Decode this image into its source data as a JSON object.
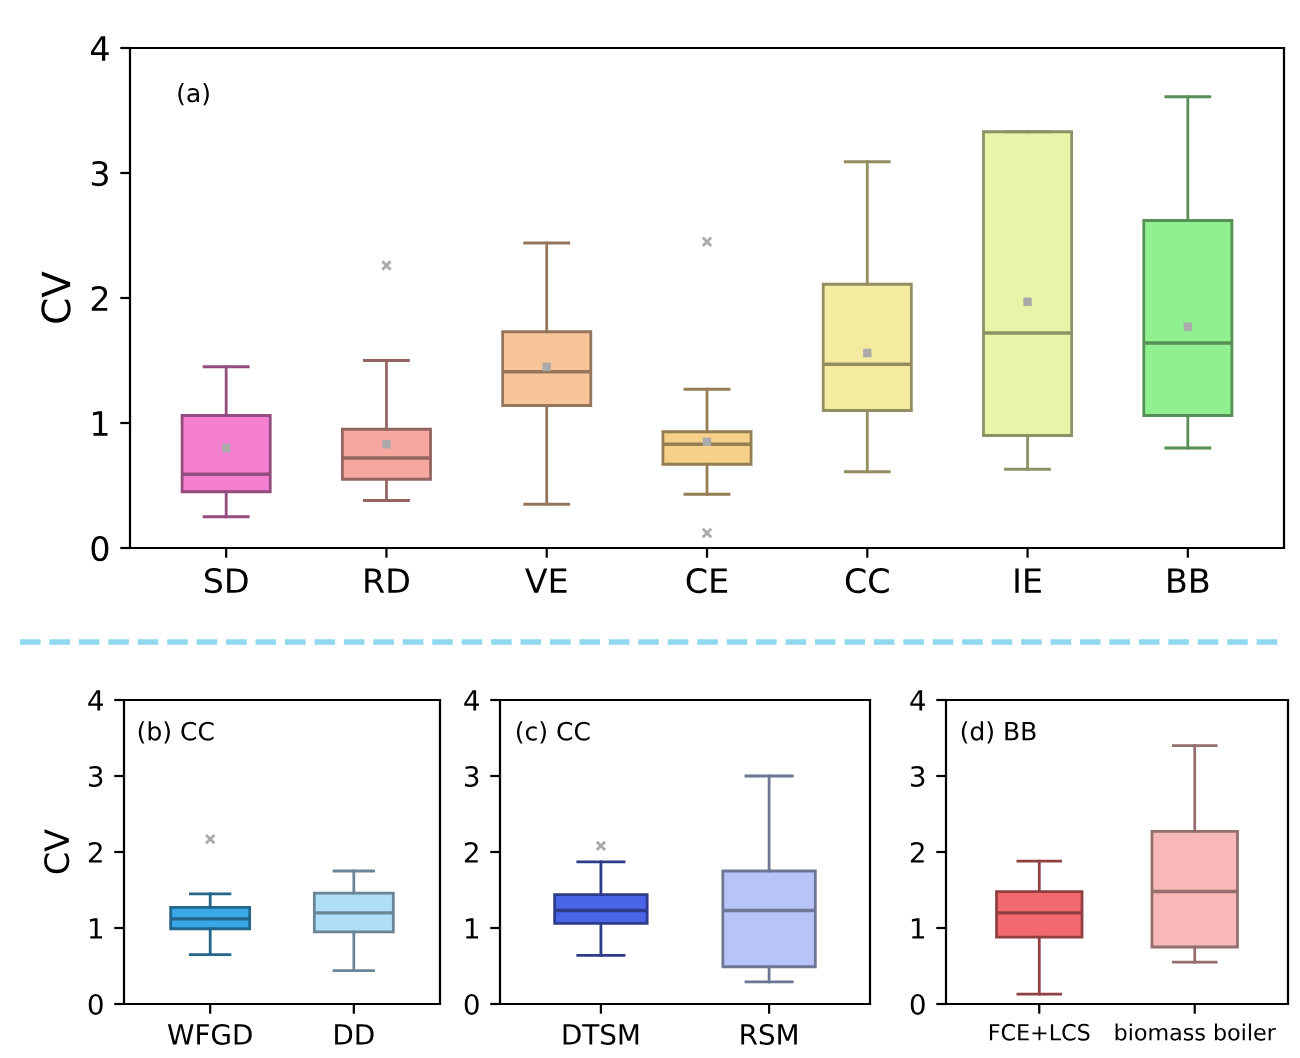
{
  "chart_data": [
    {
      "type": "box",
      "ylabel": "CV",
      "annotations": [
        "(a)"
      ],
      "categories": [
        "SD",
        "RD",
        "VE",
        "CE",
        "CC",
        "IE",
        "BB"
      ],
      "ylim": [
        0,
        4
      ],
      "yticks": [
        0,
        1,
        2,
        3,
        4
      ],
      "grid": false,
      "legend": false,
      "colors": [
        "#f47fd0",
        "#f6a8a0",
        "#f8c49a",
        "#f7d08a",
        "#f5eba0",
        "#e6f5a8",
        "#90f090"
      ],
      "boxes": [
        {
          "low": 0.25,
          "q1": 0.45,
          "median": 0.59,
          "q3": 1.06,
          "high": 1.45,
          "mean": 0.8
        },
        {
          "low": 0.38,
          "q1": 0.55,
          "median": 0.72,
          "q3": 0.95,
          "high": 1.5,
          "mean": 0.83,
          "outliers": [
            2.26
          ]
        },
        {
          "low": 0.35,
          "q1": 1.14,
          "median": 1.41,
          "q3": 1.73,
          "high": 2.44,
          "mean": 1.45
        },
        {
          "low": 0.43,
          "q1": 0.67,
          "median": 0.83,
          "q3": 0.93,
          "high": 1.27,
          "mean": 0.85,
          "outliers": [
            2.45,
            0.12
          ]
        },
        {
          "low": 0.61,
          "q1": 1.1,
          "median": 1.47,
          "q3": 2.11,
          "high": 3.09,
          "mean": 1.56
        },
        {
          "low": 0.63,
          "q1": 0.9,
          "median": 1.72,
          "q3": 3.33,
          "high": 3.33,
          "mean": 1.97
        },
        {
          "low": 0.8,
          "q1": 1.06,
          "median": 1.64,
          "q3": 2.62,
          "high": 3.61,
          "mean": 1.77
        }
      ]
    },
    {
      "type": "box",
      "ylabel": "CV",
      "annotations": [
        "(b) CC"
      ],
      "categories": [
        "WFGD",
        "DD"
      ],
      "ylim": [
        0,
        4
      ],
      "yticks": [
        0,
        1,
        2,
        3,
        4
      ],
      "grid": false,
      "legend": false,
      "colors": [
        "#3aa8e8",
        "#b0def8"
      ],
      "boxes": [
        {
          "low": 0.65,
          "q1": 0.99,
          "median": 1.12,
          "q3": 1.27,
          "high": 1.45,
          "outliers": [
            2.17
          ]
        },
        {
          "low": 0.44,
          "q1": 0.95,
          "median": 1.2,
          "q3": 1.46,
          "high": 1.75
        }
      ]
    },
    {
      "type": "box",
      "annotations": [
        "(c) CC"
      ],
      "categories": [
        "DTSM",
        "RSM"
      ],
      "ylim": [
        0,
        4
      ],
      "yticks": [
        0,
        1,
        2,
        3,
        4
      ],
      "grid": false,
      "legend": false,
      "colors": [
        "#4a64e8",
        "#b8c4f8"
      ],
      "boxes": [
        {
          "low": 0.64,
          "q1": 1.06,
          "median": 1.23,
          "q3": 1.44,
          "high": 1.87,
          "outliers": [
            2.08
          ]
        },
        {
          "low": 0.29,
          "q1": 0.49,
          "median": 1.23,
          "q3": 1.75,
          "high": 3.0
        }
      ]
    },
    {
      "type": "box",
      "annotations": [
        "(d) BB"
      ],
      "categories": [
        "FCE+LCS",
        "biomass boiler"
      ],
      "ylim": [
        0,
        4
      ],
      "yticks": [
        0,
        1,
        2,
        3,
        4
      ],
      "grid": false,
      "legend": false,
      "colors": [
        "#f26a6e",
        "#f8b8b8"
      ],
      "boxes": [
        {
          "low": 0.13,
          "q1": 0.88,
          "median": 1.2,
          "q3": 1.48,
          "high": 1.88
        },
        {
          "low": 0.55,
          "q1": 0.75,
          "median": 1.48,
          "q3": 2.27,
          "high": 3.4
        }
      ]
    }
  ]
}
